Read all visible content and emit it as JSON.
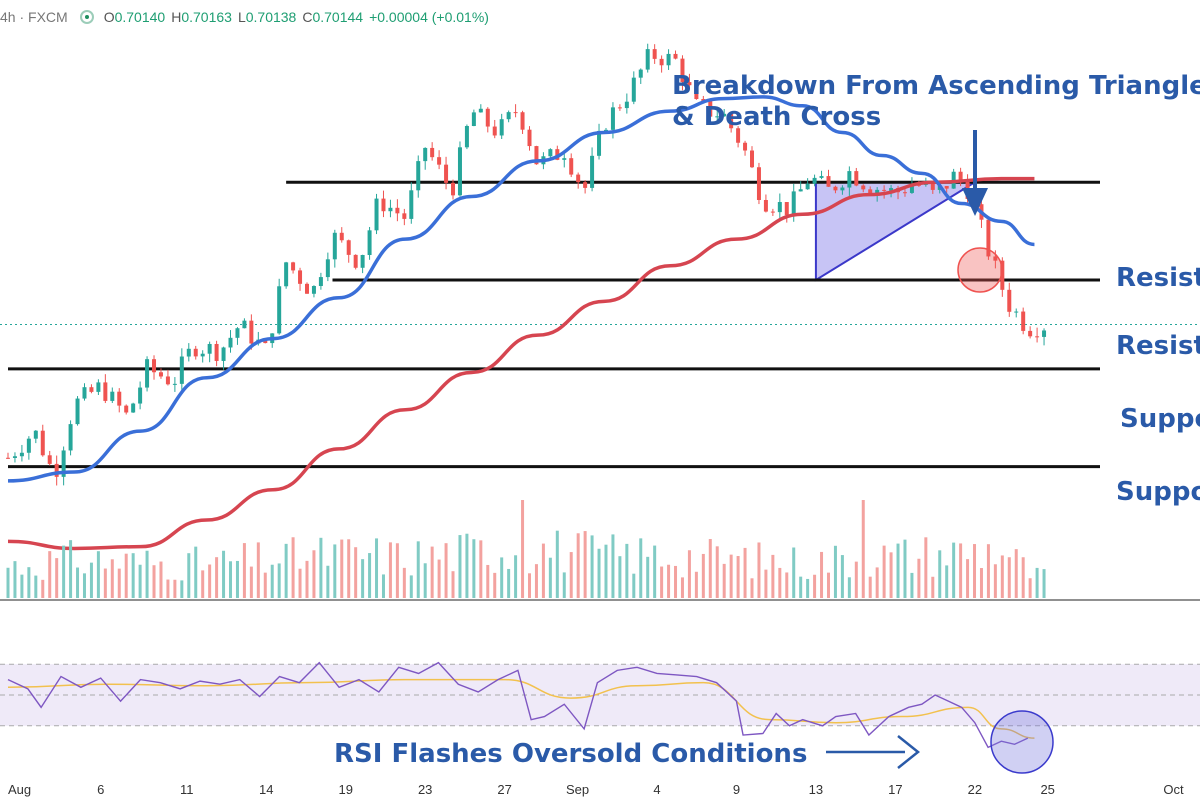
{
  "header": {
    "interval": "4h",
    "source": "FXCM",
    "open_label": "O",
    "open": "0.70140",
    "high_label": "H",
    "high": "0.70163",
    "low_label": "L",
    "low": "0.70138",
    "close_label": "C",
    "close": "0.70144",
    "change": "+0.00004 (+0.01%)"
  },
  "annotations": {
    "breakdown_line1": "Breakdown From Ascending Triangle",
    "breakdown_line2": "& Death Cross",
    "rsi_note": "RSI Flashes Oversold Conditions",
    "levels": [
      "Resist",
      "Resist",
      "Suppo",
      "Suppo"
    ]
  },
  "colors": {
    "up": "#26a69a",
    "down": "#ef5350",
    "ma_fast": "#3a6fd8",
    "ma_slow": "#d64550",
    "rsi": "#7e57c2",
    "rsi_ma": "#f2c14e",
    "annotation": "#2a5aa8",
    "triangle_fill": "#b9b5f2"
  },
  "chart_data": [
    {
      "type": "candlestick",
      "x_tick_labels": [
        "Aug",
        "6",
        "11",
        "14",
        "19",
        "23",
        "27",
        "Sep",
        "4",
        "9",
        "13",
        "17",
        "22",
        "25",
        "Oct"
      ],
      "price_path": [
        [
          0,
          0.6935
        ],
        [
          4,
          0.695
        ],
        [
          7,
          0.6925
        ],
        [
          10,
          0.6965
        ],
        [
          14,
          0.6975
        ],
        [
          18,
          0.6958
        ],
        [
          21,
          0.6985
        ],
        [
          25,
          0.6978
        ],
        [
          28,
          0.6998
        ],
        [
          32,
          0.6995
        ],
        [
          35,
          0.701
        ],
        [
          39,
          0.6995
        ],
        [
          42,
          0.7045
        ],
        [
          46,
          0.7028
        ],
        [
          49,
          0.706
        ],
        [
          53,
          0.7045
        ],
        [
          56,
          0.708
        ],
        [
          60,
          0.707
        ],
        [
          63,
          0.711
        ],
        [
          67,
          0.7085
        ],
        [
          70,
          0.713
        ],
        [
          74,
          0.7118
        ],
        [
          77,
          0.7132
        ],
        [
          80,
          0.71
        ],
        [
          84,
          0.7108
        ],
        [
          87,
          0.7085
        ],
        [
          90,
          0.7123
        ],
        [
          94,
          0.7142
        ],
        [
          97,
          0.7162
        ],
        [
          101,
          0.7158
        ],
        [
          104,
          0.7132
        ],
        [
          108,
          0.7128
        ],
        [
          111,
          0.711
        ],
        [
          114,
          0.708
        ],
        [
          118,
          0.7075
        ],
        [
          121,
          0.7093
        ],
        [
          124,
          0.7085
        ],
        [
          127,
          0.7096
        ],
        [
          130,
          0.7088
        ],
        [
          134,
          0.7084
        ],
        [
          137,
          0.709
        ],
        [
          140,
          0.7082
        ],
        [
          143,
          0.7094
        ],
        [
          145,
          0.7086
        ],
        [
          148,
          0.7052
        ],
        [
          151,
          0.7022
        ],
        [
          154,
          0.7008
        ],
        [
          157,
          0.701
        ]
      ],
      "ma_fast": {
        "name": "",
        "values": [
          [
            0,
            0.6922
          ],
          [
            10,
            0.6927
          ],
          [
            20,
            0.695
          ],
          [
            30,
            0.698
          ],
          [
            40,
            0.7002
          ],
          [
            50,
            0.7025
          ],
          [
            60,
            0.7058
          ],
          [
            70,
            0.7082
          ],
          [
            80,
            0.7102
          ],
          [
            90,
            0.7118
          ],
          [
            100,
            0.713
          ],
          [
            108,
            0.7137
          ],
          [
            114,
            0.7138
          ],
          [
            120,
            0.7133
          ],
          [
            126,
            0.7118
          ],
          [
            132,
            0.7105
          ],
          [
            138,
            0.7095
          ],
          [
            144,
            0.7078
          ],
          [
            150,
            0.7068
          ],
          [
            155,
            0.7055
          ]
        ]
      },
      "ma_slow": {
        "name": "",
        "values": [
          [
            0,
            0.6888
          ],
          [
            10,
            0.6884
          ],
          [
            20,
            0.6885
          ],
          [
            30,
            0.69
          ],
          [
            40,
            0.6917
          ],
          [
            50,
            0.694
          ],
          [
            60,
            0.6962
          ],
          [
            70,
            0.6983
          ],
          [
            80,
            0.7004
          ],
          [
            90,
            0.7023
          ],
          [
            100,
            0.7043
          ],
          [
            110,
            0.7058
          ],
          [
            120,
            0.7072
          ],
          [
            130,
            0.7083
          ],
          [
            140,
            0.709
          ],
          [
            150,
            0.7092
          ],
          [
            155,
            0.7092
          ]
        ]
      },
      "horizontal_levels": [
        {
          "label": "Resist",
          "price": 0.709,
          "from_x": 42
        },
        {
          "label": "Resist",
          "price": 0.7035,
          "from_x": 49
        },
        {
          "label": "Suppo",
          "price": 0.6985,
          "from_x": 0
        },
        {
          "label": "Suppo",
          "price": 0.693,
          "from_x": 0
        }
      ],
      "triangle": {
        "points": [
          [
            122,
            0.709
          ],
          [
            146,
            0.709
          ],
          [
            122,
            0.7035
          ]
        ]
      },
      "y_range": [
        0.69,
        0.717
      ],
      "x_range": [
        0,
        180
      ]
    },
    {
      "type": "bar",
      "name": "",
      "volume_profile": [
        [
          0,
          0.45
        ],
        [
          10,
          0.55
        ],
        [
          20,
          0.5
        ],
        [
          30,
          0.48
        ],
        [
          40,
          0.55
        ],
        [
          50,
          0.62
        ],
        [
          60,
          0.58
        ],
        [
          70,
          0.65
        ],
        [
          80,
          0.7
        ],
        [
          90,
          0.62
        ],
        [
          100,
          0.6
        ],
        [
          110,
          0.55
        ],
        [
          120,
          0.5
        ],
        [
          130,
          0.58
        ],
        [
          140,
          0.62
        ],
        [
          150,
          0.7
        ],
        [
          155,
          0.3
        ]
      ],
      "spikes": [
        [
          78,
          1.0
        ],
        [
          129,
          1.0
        ]
      ],
      "y_range": [
        0,
        1
      ]
    },
    {
      "type": "line",
      "rsi": [
        [
          0,
          60
        ],
        [
          3,
          54
        ],
        [
          5,
          42
        ],
        [
          8,
          62
        ],
        [
          11,
          55
        ],
        [
          14,
          61
        ],
        [
          17,
          46
        ],
        [
          20,
          60
        ],
        [
          23,
          58
        ],
        [
          26,
          54
        ],
        [
          29,
          59
        ],
        [
          32,
          57
        ],
        [
          35,
          60
        ],
        [
          38,
          49
        ],
        [
          41,
          62
        ],
        [
          44,
          58
        ],
        [
          47,
          71
        ],
        [
          50,
          55
        ],
        [
          53,
          60
        ],
        [
          56,
          52
        ],
        [
          59,
          68
        ],
        [
          62,
          64
        ],
        [
          65,
          71
        ],
        [
          68,
          57
        ],
        [
          71,
          52
        ],
        [
          74,
          60
        ],
        [
          77,
          66
        ],
        [
          79,
          34
        ],
        [
          81,
          36
        ],
        [
          84,
          44
        ],
        [
          87,
          28
        ],
        [
          89,
          58
        ],
        [
          92,
          66
        ],
        [
          95,
          68
        ],
        [
          98,
          64
        ],
        [
          101,
          63
        ],
        [
          104,
          62
        ],
        [
          107,
          58
        ],
        [
          110,
          46
        ],
        [
          111,
          24
        ],
        [
          114,
          25
        ],
        [
          116,
          38
        ],
        [
          118,
          30
        ],
        [
          120,
          34
        ],
        [
          123,
          30
        ],
        [
          125,
          36
        ],
        [
          128,
          38
        ],
        [
          130,
          24
        ],
        [
          133,
          36
        ],
        [
          136,
          42
        ],
        [
          138,
          44
        ],
        [
          140,
          50
        ],
        [
          142,
          46
        ],
        [
          144,
          42
        ],
        [
          146,
          32
        ],
        [
          148,
          16
        ],
        [
          150,
          20
        ],
        [
          152,
          18
        ],
        [
          154,
          22
        ]
      ],
      "rsi_ma": [
        [
          0,
          55
        ],
        [
          15,
          57
        ],
        [
          30,
          56
        ],
        [
          45,
          58
        ],
        [
          60,
          60
        ],
        [
          75,
          60
        ],
        [
          85,
          48
        ],
        [
          95,
          56
        ],
        [
          105,
          58
        ],
        [
          115,
          34
        ],
        [
          125,
          32
        ],
        [
          135,
          36
        ],
        [
          145,
          42
        ],
        [
          150,
          28
        ],
        [
          155,
          22
        ]
      ],
      "bands": [
        70,
        50,
        30
      ],
      "y_range": [
        0,
        100
      ]
    }
  ]
}
